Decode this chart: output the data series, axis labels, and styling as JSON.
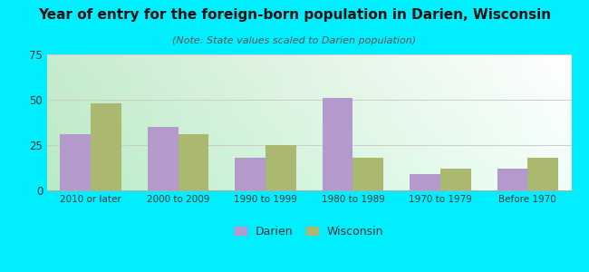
{
  "title": "Year of entry for the foreign-born population in Darien, Wisconsin",
  "subtitle": "(Note: State values scaled to Darien population)",
  "categories": [
    "2010 or later",
    "2000 to 2009",
    "1990 to 1999",
    "1980 to 1989",
    "1970 to 1979",
    "Before 1970"
  ],
  "darien_values": [
    31,
    35,
    18,
    51,
    9,
    12
  ],
  "wisconsin_values": [
    48,
    31,
    25,
    18,
    12,
    18
  ],
  "darien_color": "#b399cc",
  "wisconsin_color": "#aab870",
  "ylim": [
    0,
    75
  ],
  "yticks": [
    0,
    25,
    50,
    75
  ],
  "background_outer": "#00eeff",
  "grid_color": "#cccccc",
  "title_fontsize": 11,
  "subtitle_fontsize": 8,
  "bar_width": 0.35,
  "legend_labels": [
    "Darien",
    "Wisconsin"
  ]
}
